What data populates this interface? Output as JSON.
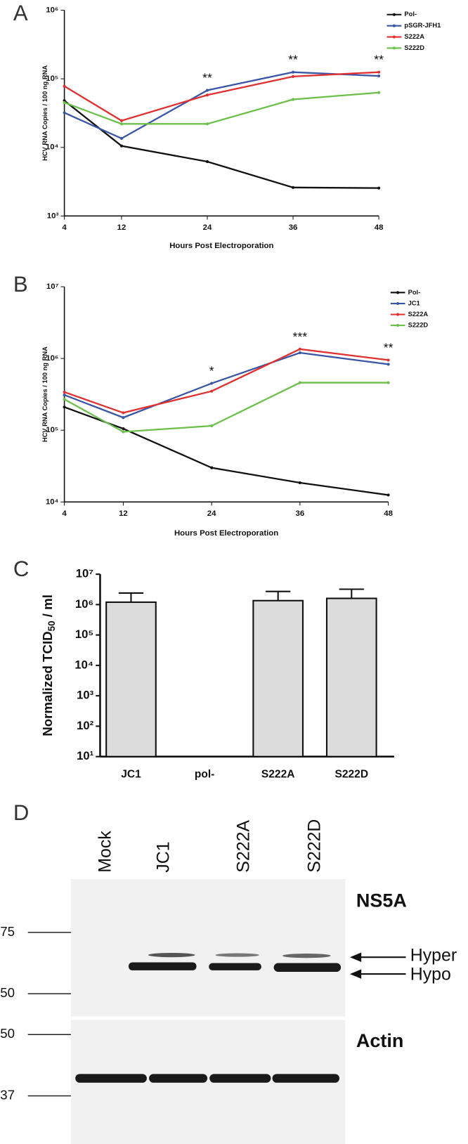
{
  "panel_labels": [
    "A",
    "B",
    "C",
    "D"
  ],
  "chart_data": [
    {
      "type": "line",
      "x": [
        4,
        12,
        24,
        36,
        48
      ],
      "xlim": [
        4,
        48
      ],
      "xticks": [
        4,
        12,
        24,
        36,
        48
      ],
      "log_y": true,
      "ylim": [
        1000,
        1000000
      ],
      "yticks": [
        {
          "value": 1000,
          "label": "10³"
        },
        {
          "value": 10000,
          "label": "10⁴"
        },
        {
          "value": 100000,
          "label": "10⁵"
        },
        {
          "value": 1000000,
          "label": "10⁶"
        }
      ],
      "x_label": "Hours  Post  Electroporation",
      "y_label": "HCV  RNA  Copies / 100 ng  RNA",
      "annotations": [
        null,
        null,
        "**",
        "**",
        "**"
      ],
      "series": [
        {
          "name": "Pol-",
          "color": "#111111",
          "values": [
            48000,
            10500,
            6200,
            2600,
            2550
          ]
        },
        {
          "name": "pSGR-JFH1",
          "color": "#3a55a4",
          "values": [
            32000,
            13500,
            68000,
            125000,
            110000
          ]
        },
        {
          "name": "S222A",
          "color": "#e03030",
          "values": [
            78000,
            24500,
            58000,
            108000,
            125000
          ]
        },
        {
          "name": "S222D",
          "color": "#6cc04a",
          "values": [
            45000,
            22000,
            22000,
            50000,
            63000
          ]
        }
      ]
    },
    {
      "type": "line",
      "x": [
        4,
        12,
        24,
        36,
        48
      ],
      "xlim": [
        4,
        48
      ],
      "xticks": [
        4,
        12,
        24,
        36,
        48
      ],
      "log_y": true,
      "ylim": [
        10000,
        10000000
      ],
      "yticks": [
        {
          "value": 10000,
          "label": "10⁴"
        },
        {
          "value": 100000,
          "label": "10⁵"
        },
        {
          "value": 1000000,
          "label": "10⁶"
        },
        {
          "value": 10000000,
          "label": "10⁷"
        }
      ],
      "x_label": "Hours  Post  Electroporation",
      "y_label": "HCV  RNA  Copies / 100 ng  RNA",
      "annotations": [
        null,
        null,
        "*",
        "***",
        "**"
      ],
      "series": [
        {
          "name": "Pol-",
          "color": "#111111",
          "values": [
            210000,
            105000,
            30000,
            18500,
            12500
          ]
        },
        {
          "name": "JC1",
          "color": "#3a55a4",
          "values": [
            310000,
            150000,
            450000,
            1200000,
            830000
          ]
        },
        {
          "name": "S222A",
          "color": "#e03030",
          "values": [
            340000,
            175000,
            350000,
            1350000,
            950000
          ]
        },
        {
          "name": "S222D",
          "color": "#6cc04a",
          "values": [
            270000,
            95000,
            115000,
            460000,
            460000
          ]
        }
      ]
    },
    {
      "type": "bar",
      "categories": [
        "JC1",
        "pol-",
        "S222A",
        "S222D"
      ],
      "values": [
        1200000,
        null,
        1350000,
        1600000
      ],
      "errors": [
        1200000,
        null,
        1350000,
        1600000
      ],
      "color": "#dcdcdc",
      "log_y": true,
      "ylim": [
        10,
        10000000
      ],
      "yticks": [
        {
          "value": 10,
          "label": "10¹"
        },
        {
          "value": 100,
          "label": "10²"
        },
        {
          "value": 1000,
          "label": "10³"
        },
        {
          "value": 10000,
          "label": "10⁴"
        },
        {
          "value": 100000,
          "label": "10⁵"
        },
        {
          "value": 1000000,
          "label": "10⁶"
        },
        {
          "value": 10000000,
          "label": "10⁷"
        }
      ],
      "y_label": "Normalized TCID",
      "y_label_sub": "50",
      "y_label_suffix": " / ml"
    }
  ],
  "blot": {
    "lanes": [
      "Mock",
      "JC1",
      "S222A",
      "S222D"
    ],
    "markers": [
      "75",
      "50",
      "50",
      "37"
    ],
    "top_label": "NS5A",
    "bottom_label": "Actin",
    "hyper": "Hyper",
    "hypo": "Hypo"
  }
}
